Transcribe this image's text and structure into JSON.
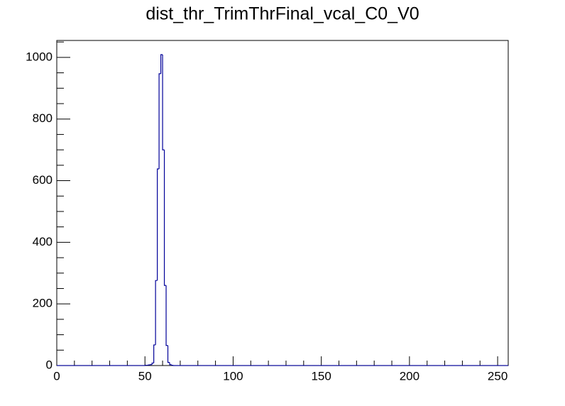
{
  "chart_data": {
    "type": "histogram",
    "title": "dist_thr_TrimThrFinal_vcal_C0_V0",
    "color": "#000099",
    "bins": [
      0,
      1,
      2,
      3,
      4,
      5,
      6,
      7,
      8,
      9,
      10,
      11,
      12,
      13,
      14,
      15,
      16,
      17,
      18,
      19,
      20,
      21,
      22,
      23,
      24,
      25,
      26,
      27,
      28,
      29,
      30,
      31,
      32,
      33,
      34,
      35,
      36,
      37,
      38,
      39,
      40,
      41,
      42,
      43,
      44,
      45,
      46,
      47,
      48,
      49,
      50,
      51,
      52,
      53,
      54,
      55,
      56,
      57,
      58,
      59,
      60,
      61,
      62,
      63,
      64,
      65,
      66,
      67,
      68,
      69,
      70,
      71,
      72,
      73,
      74,
      75,
      76,
      77,
      78,
      79,
      80,
      81,
      82,
      83,
      84,
      85,
      86,
      87,
      88,
      89,
      90,
      91,
      92,
      93,
      94,
      95,
      96,
      97,
      98,
      99,
      100,
      101,
      102,
      103,
      104,
      105,
      106,
      107,
      108,
      109,
      110,
      111,
      112,
      113,
      114,
      115,
      116,
      117,
      118,
      119,
      120,
      121,
      122,
      123,
      124,
      125,
      126,
      127,
      128,
      129,
      130,
      131,
      132,
      133,
      134,
      135,
      136,
      137,
      138,
      139,
      140,
      141,
      142,
      143,
      144,
      145,
      146,
      147,
      148,
      149,
      150,
      151,
      152,
      153,
      154,
      155,
      156,
      157,
      158,
      159,
      160,
      161,
      162,
      163,
      164,
      165,
      166,
      167,
      168,
      169,
      170,
      171,
      172,
      173,
      174,
      175,
      176,
      177,
      178,
      179,
      180,
      181,
      182,
      183,
      184,
      185,
      186,
      187,
      188,
      189,
      190,
      191,
      192,
      193,
      194,
      195,
      196,
      197,
      198,
      199,
      200,
      201,
      202,
      203,
      204,
      205,
      206,
      207,
      208,
      209,
      210,
      211,
      212,
      213,
      214,
      215,
      216,
      217,
      218,
      219,
      220,
      221,
      222,
      223,
      224,
      225,
      226,
      227,
      228,
      229,
      230,
      231,
      232,
      233,
      234,
      235,
      236,
      237,
      238,
      239,
      240,
      241,
      242,
      243,
      244,
      245,
      246,
      247,
      248,
      249,
      250,
      251,
      252,
      253,
      254,
      255,
      256
    ],
    "counts": [
      0,
      0,
      0,
      0,
      0,
      0,
      0,
      0,
      0,
      0,
      0,
      0,
      0,
      0,
      0,
      0,
      0,
      0,
      0,
      0,
      0,
      0,
      0,
      0,
      0,
      0,
      0,
      0,
      0,
      0,
      0,
      0,
      0,
      0,
      0,
      0,
      0,
      0,
      0,
      0,
      0,
      0,
      0,
      0,
      0,
      0,
      0,
      0,
      0,
      0,
      1,
      1,
      2,
      3,
      8,
      67,
      276,
      638,
      947,
      1009,
      700,
      260,
      65,
      10,
      3,
      1,
      0,
      0,
      0,
      0,
      0,
      0,
      0,
      0,
      0,
      0,
      0,
      0,
      0,
      0,
      0,
      0,
      0,
      0,
      0,
      0,
      0,
      0,
      0,
      0,
      0,
      0,
      0,
      0,
      0,
      0,
      0,
      0,
      0,
      0,
      0,
      0,
      0,
      0,
      0,
      0,
      0,
      0,
      0,
      0,
      0,
      0,
      0,
      0,
      0,
      0,
      0,
      0,
      0,
      0,
      0,
      0,
      0,
      0,
      0,
      0,
      0,
      0,
      0,
      0,
      0,
      0,
      0,
      0,
      0,
      0,
      0,
      0,
      0,
      0,
      0,
      0,
      0,
      0,
      0,
      0,
      0,
      0,
      0,
      0,
      0,
      0,
      0,
      0,
      0,
      0,
      0,
      0,
      0,
      0,
      0,
      0,
      0,
      0,
      0,
      0,
      0,
      0,
      0,
      0,
      0,
      0,
      0,
      0,
      0,
      0,
      0,
      0,
      0,
      0,
      0,
      0,
      0,
      0,
      0,
      0,
      0,
      0,
      0,
      0,
      0,
      0,
      0,
      0,
      0,
      0,
      0,
      0,
      0,
      0,
      0,
      0,
      0,
      0,
      0,
      0,
      0,
      0,
      0,
      0,
      0,
      0,
      0,
      0,
      0,
      0,
      0,
      0,
      0,
      0,
      0,
      0,
      0,
      0,
      0,
      0,
      0,
      0,
      0,
      0,
      0,
      0,
      0,
      0,
      0,
      0,
      0,
      0,
      0,
      0,
      0,
      0,
      0,
      0,
      0,
      0,
      0,
      0,
      0,
      0,
      0,
      0,
      0,
      0,
      0,
      0
    ],
    "xlim": [
      0,
      256
    ],
    "xticks": [
      0,
      50,
      100,
      150,
      200,
      250
    ],
    "xminorticks": [
      10,
      20,
      30,
      40,
      60,
      70,
      80,
      90,
      110,
      120,
      130,
      140,
      160,
      170,
      180,
      190,
      210,
      220,
      230,
      240
    ],
    "ylim": [
      0,
      1055
    ],
    "yticks": [
      0,
      200,
      400,
      600,
      800,
      1000
    ],
    "yminorticks": [
      50,
      100,
      150,
      250,
      300,
      350,
      450,
      500,
      550,
      650,
      700,
      750,
      850,
      900,
      950,
      1050
    ]
  }
}
